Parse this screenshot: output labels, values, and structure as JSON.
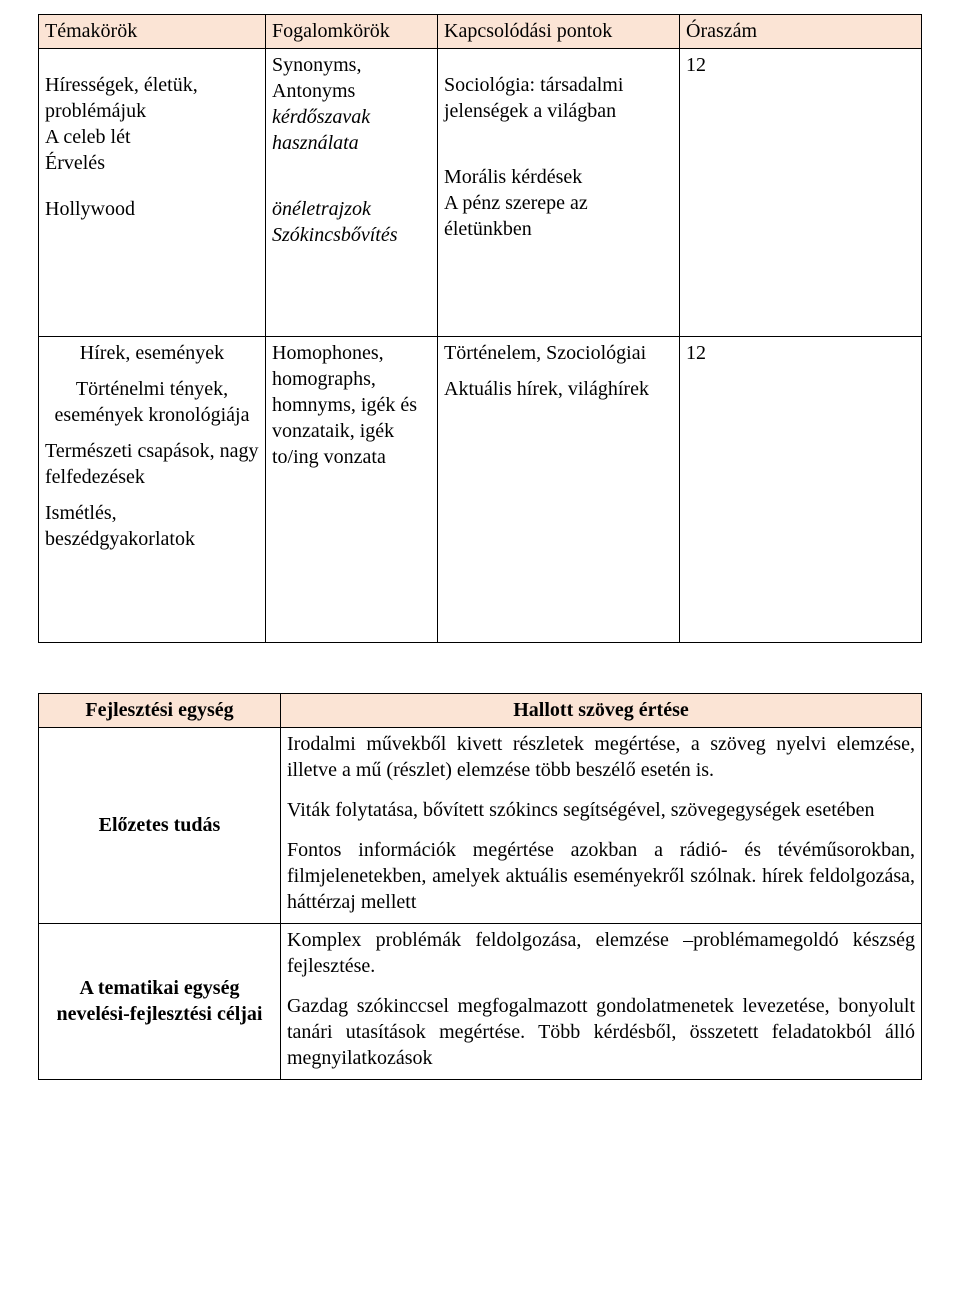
{
  "doc": {
    "background": "#ffffff",
    "text_color": "#000000",
    "header_bg": "#fbe4d5",
    "font_family": "Times New Roman",
    "body_fontsize_pt": 15
  },
  "table1": {
    "type": "table",
    "columns": [
      "Témakörök",
      "Fogalomkörök",
      "Kapcsolódási pontok",
      "Óraszám"
    ],
    "header_bg": "#fbe4d5",
    "rows": [
      {
        "col1": {
          "p1": "Hírességek, életük, problémájuk",
          "p2": "A celeb lét",
          "p3": "Érvelés",
          "p4": "Hollywood"
        },
        "col2": {
          "p1": "Synonyms, Antonyms",
          "p2": "kérdőszavak használata",
          "p3": "önéletrajzok",
          "p4": "Szókincsbővítés"
        },
        "col3": {
          "p1": "Sociológia: társadalmi jelenségek a világban",
          "p2": "Morális kérdések",
          "p3": "A pénz szerepe az életünkben"
        },
        "col4": "12"
      },
      {
        "col1": {
          "p1": "Hírek, események",
          "p2": "Történelmi tények, események kronológiája",
          "p3": "Természeti csapások, nagy felfedezések",
          "p4": "Ismétlés, beszédgyakorlatok"
        },
        "col2": {
          "p1": "Homophones, homographs, homnyms, igék és vonzataik, igék to/ing vonzata"
        },
        "col3": {
          "p1": "Történelem, Szociológiai",
          "p2": "Aktuális hírek, világhírek"
        },
        "col4": "12"
      }
    ]
  },
  "table2": {
    "type": "table",
    "header_bg": "#fbe4d5",
    "headers": {
      "h1": "Fejlesztési egység",
      "h2": "Hallott szöveg értése"
    },
    "rows": [
      {
        "label": "Előzetes tudás",
        "content": {
          "p1": "Irodalmi művekből kivett részletek megértése, a szöveg nyelvi elemzése, illetve a mű (részlet) elemzése több beszélő esetén is.",
          "p2": "Viták folytatása, bővített szókincs segítségével, szövegegységek esetében",
          "p3": "Fontos információk megértése azokban a rádió- és tévéműsorokban, filmjelenetekben, amelyek aktuális eseményekről szólnak. hírek feldolgozása, háttérzaj mellett"
        }
      },
      {
        "label": "A tematikai egység nevelési-fejlesztési céljai",
        "content": {
          "p1": "Komplex problémák feldolgozása, elemzése –problémamegoldó készség fejlesztése.",
          "p2": "Gazdag szókinccsel megfogalmazott gondolatmenetek levezetése, bonyolult tanári utasítások megértése. Több kérdésből, összetett feladatokból álló megnyilatkozások"
        }
      }
    ]
  }
}
